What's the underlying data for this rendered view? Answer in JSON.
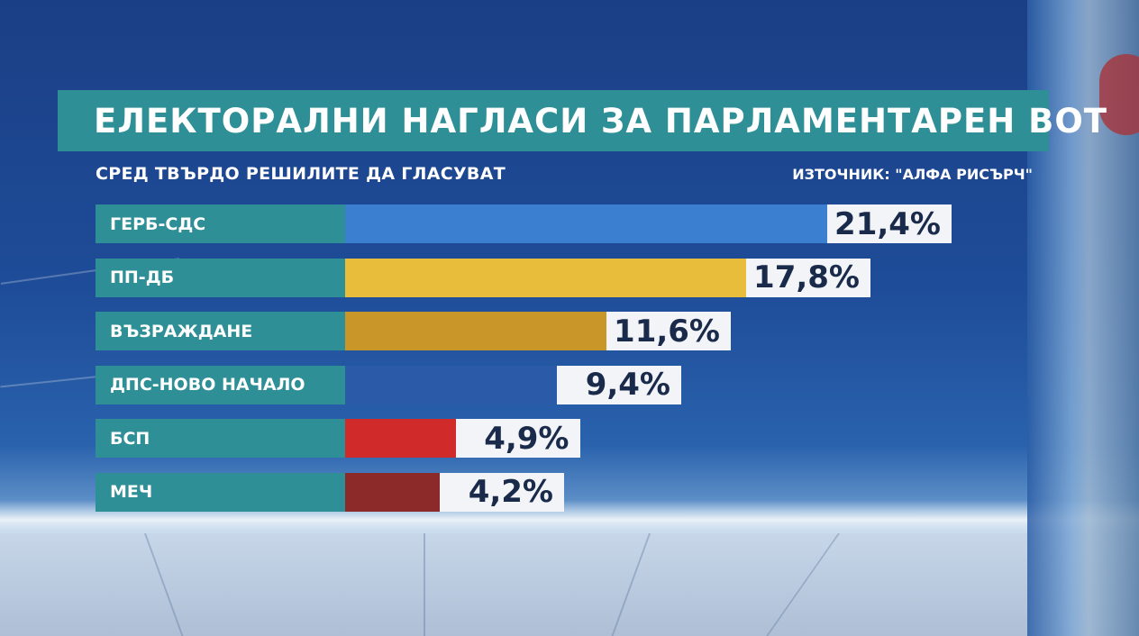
{
  "title": "ЕЛЕКТОРАЛНИ НАГЛАСИ ЗА ПАРЛАМЕНТАРЕН ВОТ",
  "subtitle": "СРЕД ТВЪРДО РЕШИЛИТЕ ДА ГЛАСУВАТ",
  "source": "ИЗТОЧНИК: \"АЛФА РИСЪРЧ\"",
  "chart_data": {
    "type": "bar",
    "orientation": "horizontal",
    "title": "ЕЛЕКТОРАЛНИ НАГЛАСИ ЗА ПАРЛАМЕНТАРЕН ВОТ",
    "subtitle": "СРЕД ТВЪРДО РЕШИЛИТЕ ДА ГЛАСУВАТ",
    "categories": [
      "ГЕРБ-СДС",
      "ПП-ДБ",
      "ВЪЗРАЖДАНЕ",
      "ДПС-НОВО НАЧАЛО",
      "БСП",
      "МЕЧ"
    ],
    "values": [
      21.4,
      17.8,
      11.6,
      9.4,
      4.9,
      4.2
    ],
    "labels": [
      "21,4%",
      "17,8%",
      "11,6%",
      "9,4%",
      "4,9%",
      "4,2%"
    ],
    "colors": [
      "#3a7fd0",
      "#e9bd3c",
      "#c9962a",
      "#2a5aa8",
      "#d12a2a",
      "#8c2a2a"
    ],
    "xlim": [
      0,
      21.4
    ],
    "grid": false,
    "legend": "none"
  }
}
